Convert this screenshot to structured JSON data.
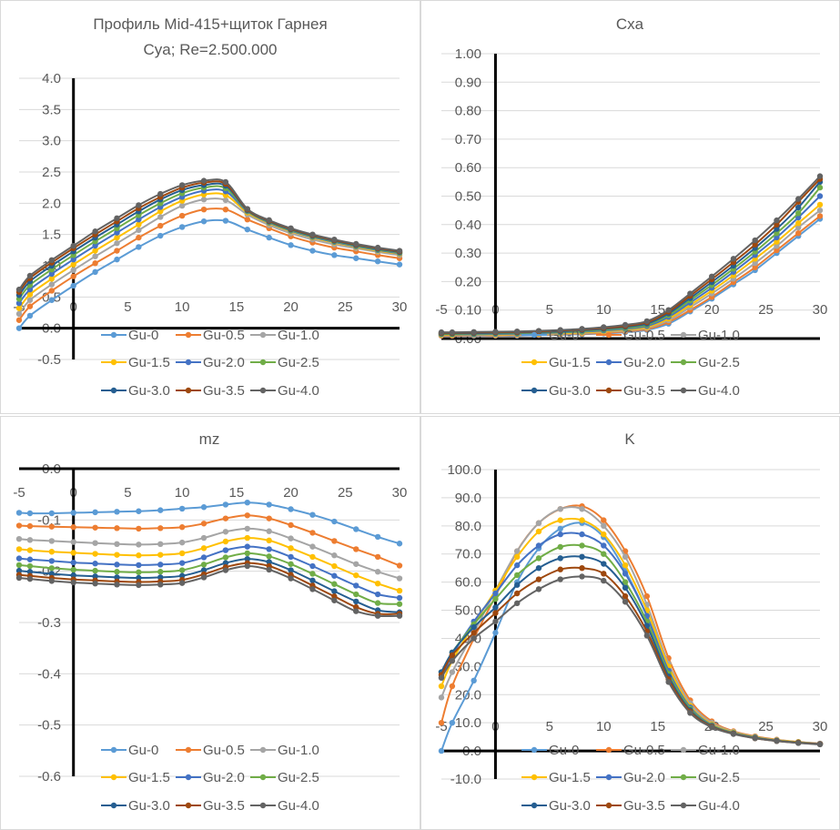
{
  "series_colors": [
    "#5b9bd5",
    "#ed7d31",
    "#a5a5a5",
    "#ffc000",
    "#4472c4",
    "#70ad47",
    "#255e91",
    "#9e480e",
    "#636363"
  ],
  "chart_data": [
    {
      "type": "line",
      "title": [
        "Профиль Mid-415+щиток Гарнея",
        "Cya; Re=2.500.000"
      ],
      "xlabel": "",
      "ylabel": "",
      "xlim": [
        -5,
        30
      ],
      "ylim": [
        -0.5,
        4.0
      ],
      "x_ticks": [
        "-5",
        "0",
        "5",
        "10",
        "15",
        "20",
        "25",
        "30"
      ],
      "y_ticks": [
        "-0.5",
        "0.0",
        "0.5",
        "1.0",
        "1.5",
        "2.0",
        "2.5",
        "3.0",
        "3.5",
        "4.0"
      ],
      "x": [
        -5,
        -4,
        -2,
        0,
        2,
        4,
        6,
        8,
        10,
        12,
        14,
        16,
        18,
        20,
        22,
        24,
        26,
        28,
        30
      ],
      "series": [
        {
          "name": "Gu-0",
          "values": [
            0.0,
            0.2,
            0.45,
            0.68,
            0.9,
            1.1,
            1.3,
            1.48,
            1.62,
            1.71,
            1.72,
            1.58,
            1.45,
            1.33,
            1.24,
            1.17,
            1.12,
            1.07,
            1.02
          ]
        },
        {
          "name": "Gu-0.5",
          "values": [
            0.13,
            0.35,
            0.6,
            0.83,
            1.04,
            1.24,
            1.45,
            1.64,
            1.8,
            1.9,
            1.9,
            1.74,
            1.6,
            1.47,
            1.37,
            1.29,
            1.23,
            1.17,
            1.12
          ]
        },
        {
          "name": "Gu-1.0",
          "values": [
            0.23,
            0.45,
            0.7,
            0.93,
            1.15,
            1.36,
            1.57,
            1.78,
            1.96,
            2.06,
            2.05,
            1.82,
            1.65,
            1.52,
            1.42,
            1.34,
            1.28,
            1.22,
            1.17
          ]
        },
        {
          "name": "Gu-1.5",
          "values": [
            0.32,
            0.54,
            0.79,
            1.02,
            1.24,
            1.45,
            1.66,
            1.87,
            2.04,
            2.14,
            2.13,
            1.85,
            1.68,
            1.55,
            1.45,
            1.37,
            1.3,
            1.24,
            1.19
          ]
        },
        {
          "name": "Gu-2.0",
          "values": [
            0.4,
            0.62,
            0.87,
            1.1,
            1.32,
            1.53,
            1.74,
            1.94,
            2.1,
            2.2,
            2.19,
            1.87,
            1.69,
            1.56,
            1.46,
            1.38,
            1.31,
            1.25,
            1.2
          ]
        },
        {
          "name": "Gu-2.5",
          "values": [
            0.47,
            0.69,
            0.94,
            1.17,
            1.39,
            1.6,
            1.81,
            2.0,
            2.16,
            2.25,
            2.24,
            1.88,
            1.7,
            1.57,
            1.47,
            1.39,
            1.32,
            1.26,
            1.21
          ]
        },
        {
          "name": "Gu-3.0",
          "values": [
            0.53,
            0.75,
            1.0,
            1.23,
            1.45,
            1.66,
            1.87,
            2.06,
            2.21,
            2.29,
            2.28,
            1.89,
            1.71,
            1.58,
            1.48,
            1.4,
            1.33,
            1.27,
            1.22
          ]
        },
        {
          "name": "Gu-3.5",
          "values": [
            0.58,
            0.8,
            1.05,
            1.28,
            1.5,
            1.71,
            1.92,
            2.1,
            2.25,
            2.33,
            2.31,
            1.9,
            1.72,
            1.59,
            1.49,
            1.41,
            1.34,
            1.28,
            1.23
          ]
        },
        {
          "name": "Gu-4.0",
          "values": [
            0.62,
            0.84,
            1.09,
            1.32,
            1.55,
            1.76,
            1.97,
            2.15,
            2.29,
            2.36,
            2.34,
            1.91,
            1.73,
            1.6,
            1.5,
            1.42,
            1.35,
            1.29,
            1.24
          ]
        }
      ]
    },
    {
      "type": "line",
      "title": [
        "Cxa"
      ],
      "xlabel": "",
      "ylabel": "",
      "xlim": [
        -5,
        30
      ],
      "ylim": [
        0.0,
        1.0
      ],
      "x_ticks": [
        "-5",
        "0",
        "5",
        "10",
        "15",
        "20",
        "25",
        "30"
      ],
      "y_ticks": [
        "0.00",
        "0.10",
        "0.20",
        "0.30",
        "0.40",
        "0.50",
        "0.60",
        "0.70",
        "0.80",
        "0.90",
        "1.00"
      ],
      "x": [
        -5,
        -4,
        -2,
        0,
        2,
        4,
        6,
        8,
        10,
        12,
        14,
        16,
        18,
        20,
        22,
        24,
        26,
        28,
        30
      ],
      "series": [
        {
          "name": "Gu-0",
          "values": [
            0.01,
            0.01,
            0.01,
            0.01,
            0.01,
            0.012,
            0.013,
            0.015,
            0.018,
            0.022,
            0.03,
            0.052,
            0.095,
            0.14,
            0.19,
            0.24,
            0.3,
            0.36,
            0.42
          ]
        },
        {
          "name": "Gu-0.5",
          "values": [
            0.01,
            0.01,
            0.011,
            0.011,
            0.012,
            0.013,
            0.015,
            0.017,
            0.02,
            0.025,
            0.033,
            0.058,
            0.1,
            0.146,
            0.198,
            0.25,
            0.31,
            0.37,
            0.43
          ]
        },
        {
          "name": "Gu-1.0",
          "values": [
            0.012,
            0.012,
            0.012,
            0.013,
            0.014,
            0.015,
            0.017,
            0.019,
            0.023,
            0.028,
            0.037,
            0.064,
            0.11,
            0.158,
            0.21,
            0.265,
            0.325,
            0.39,
            0.45
          ]
        },
        {
          "name": "Gu-1.5",
          "values": [
            0.013,
            0.013,
            0.014,
            0.014,
            0.015,
            0.017,
            0.019,
            0.021,
            0.025,
            0.031,
            0.04,
            0.07,
            0.118,
            0.168,
            0.222,
            0.28,
            0.34,
            0.405,
            0.47
          ]
        },
        {
          "name": "Gu-2.0",
          "values": [
            0.015,
            0.015,
            0.015,
            0.016,
            0.017,
            0.019,
            0.021,
            0.024,
            0.028,
            0.034,
            0.044,
            0.076,
            0.126,
            0.178,
            0.234,
            0.293,
            0.355,
            0.425,
            0.5
          ]
        },
        {
          "name": "Gu-2.5",
          "values": [
            0.016,
            0.016,
            0.017,
            0.018,
            0.019,
            0.021,
            0.023,
            0.026,
            0.031,
            0.037,
            0.048,
            0.082,
            0.134,
            0.188,
            0.245,
            0.305,
            0.37,
            0.44,
            0.53
          ]
        },
        {
          "name": "Gu-3.0",
          "values": [
            0.018,
            0.018,
            0.019,
            0.02,
            0.021,
            0.023,
            0.025,
            0.029,
            0.034,
            0.041,
            0.052,
            0.088,
            0.142,
            0.198,
            0.256,
            0.318,
            0.385,
            0.46,
            0.55
          ]
        },
        {
          "name": "Gu-3.5",
          "values": [
            0.02,
            0.02,
            0.021,
            0.022,
            0.023,
            0.025,
            0.028,
            0.032,
            0.037,
            0.044,
            0.057,
            0.094,
            0.15,
            0.208,
            0.268,
            0.33,
            0.4,
            0.48,
            0.56
          ]
        },
        {
          "name": "Gu-4.0",
          "values": [
            0.022,
            0.022,
            0.023,
            0.024,
            0.025,
            0.027,
            0.03,
            0.034,
            0.04,
            0.048,
            0.061,
            0.1,
            0.158,
            0.218,
            0.28,
            0.345,
            0.415,
            0.49,
            0.57
          ]
        }
      ]
    },
    {
      "type": "line",
      "title": [
        "mz"
      ],
      "xlabel": "",
      "ylabel": "",
      "xlim": [
        -5,
        30
      ],
      "ylim": [
        -0.6,
        0.0
      ],
      "x_ticks": [
        "-5",
        "0",
        "5",
        "10",
        "15",
        "20",
        "25",
        "30"
      ],
      "y_ticks": [
        "0.0",
        "-0.1",
        "-0.2",
        "-0.3",
        "-0.4",
        "-0.5",
        "-0.6"
      ],
      "y_tick_values": [
        0.0,
        -0.1,
        -0.2,
        -0.3,
        -0.4,
        -0.5,
        -0.6
      ],
      "x": [
        -5,
        -4,
        -2,
        0,
        2,
        4,
        6,
        8,
        10,
        12,
        14,
        16,
        18,
        20,
        22,
        24,
        26,
        28,
        30
      ],
      "series": [
        {
          "name": "Gu-0",
          "values": [
            -0.086,
            -0.087,
            -0.087,
            -0.086,
            -0.085,
            -0.084,
            -0.083,
            -0.081,
            -0.078,
            -0.075,
            -0.07,
            -0.066,
            -0.07,
            -0.079,
            -0.09,
            -0.103,
            -0.118,
            -0.133,
            -0.146
          ]
        },
        {
          "name": "Gu-0.5",
          "values": [
            -0.111,
            -0.112,
            -0.113,
            -0.114,
            -0.115,
            -0.116,
            -0.117,
            -0.116,
            -0.114,
            -0.107,
            -0.097,
            -0.091,
            -0.097,
            -0.11,
            -0.125,
            -0.141,
            -0.157,
            -0.172,
            -0.189
          ]
        },
        {
          "name": "Gu-1.0",
          "values": [
            -0.137,
            -0.139,
            -0.141,
            -0.143,
            -0.145,
            -0.147,
            -0.148,
            -0.147,
            -0.144,
            -0.135,
            -0.123,
            -0.117,
            -0.122,
            -0.136,
            -0.152,
            -0.169,
            -0.186,
            -0.201,
            -0.214
          ]
        },
        {
          "name": "Gu-1.5",
          "values": [
            -0.157,
            -0.159,
            -0.162,
            -0.164,
            -0.166,
            -0.168,
            -0.169,
            -0.168,
            -0.165,
            -0.155,
            -0.142,
            -0.135,
            -0.14,
            -0.155,
            -0.172,
            -0.19,
            -0.208,
            -0.224,
            -0.238
          ]
        },
        {
          "name": "Gu-2.0",
          "values": [
            -0.175,
            -0.177,
            -0.18,
            -0.183,
            -0.185,
            -0.187,
            -0.188,
            -0.187,
            -0.184,
            -0.173,
            -0.159,
            -0.152,
            -0.157,
            -0.172,
            -0.19,
            -0.209,
            -0.228,
            -0.245,
            -0.252
          ]
        },
        {
          "name": "Gu-2.5",
          "values": [
            -0.188,
            -0.19,
            -0.194,
            -0.197,
            -0.199,
            -0.201,
            -0.202,
            -0.201,
            -0.198,
            -0.187,
            -0.173,
            -0.165,
            -0.171,
            -0.186,
            -0.205,
            -0.225,
            -0.245,
            -0.262,
            -0.264
          ]
        },
        {
          "name": "Gu-3.0",
          "values": [
            -0.199,
            -0.201,
            -0.205,
            -0.208,
            -0.21,
            -0.212,
            -0.213,
            -0.212,
            -0.209,
            -0.198,
            -0.184,
            -0.176,
            -0.182,
            -0.198,
            -0.218,
            -0.239,
            -0.259,
            -0.276,
            -0.28
          ]
        },
        {
          "name": "Gu-3.5",
          "values": [
            -0.207,
            -0.209,
            -0.213,
            -0.216,
            -0.218,
            -0.22,
            -0.221,
            -0.22,
            -0.217,
            -0.206,
            -0.192,
            -0.184,
            -0.19,
            -0.207,
            -0.228,
            -0.249,
            -0.27,
            -0.283,
            -0.283
          ]
        },
        {
          "name": "Gu-4.0",
          "values": [
            -0.213,
            -0.215,
            -0.219,
            -0.222,
            -0.224,
            -0.226,
            -0.227,
            -0.226,
            -0.223,
            -0.212,
            -0.198,
            -0.19,
            -0.197,
            -0.214,
            -0.235,
            -0.257,
            -0.278,
            -0.287,
            -0.287
          ]
        }
      ]
    },
    {
      "type": "line",
      "title": [
        "K"
      ],
      "xlabel": "",
      "ylabel": "",
      "xlim": [
        -5,
        30
      ],
      "ylim": [
        -10.0,
        100.0
      ],
      "x_ticks": [
        "-5",
        "0",
        "5",
        "10",
        "15",
        "20",
        "25",
        "30"
      ],
      "y_ticks": [
        "-10.0",
        "0.0",
        "10.0",
        "20.0",
        "30.0",
        "40.0",
        "50.0",
        "60.0",
        "70.0",
        "80.0",
        "90.0",
        "100.0"
      ],
      "x": [
        -5,
        -4,
        -2,
        0,
        2,
        4,
        6,
        8,
        10,
        12,
        14,
        16,
        18,
        20,
        22,
        24,
        26,
        28,
        30
      ],
      "series": [
        {
          "name": "Gu-0",
          "values": [
            0.0,
            10.0,
            25.0,
            42.0,
            60.0,
            72.0,
            79.0,
            81.0,
            76.0,
            64.0,
            48.0,
            28.0,
            15.0,
            9.5,
            6.5,
            4.8,
            3.7,
            3.0,
            2.4
          ]
        },
        {
          "name": "Gu-0.5",
          "values": [
            10.0,
            23.0,
            40.0,
            55.0,
            71.0,
            81.0,
            86.0,
            87.0,
            82.0,
            71.0,
            55.0,
            33.0,
            18.0,
            10.5,
            7.0,
            5.2,
            4.0,
            3.2,
            2.6
          ]
        },
        {
          "name": "Gu-1.0",
          "values": [
            19.0,
            28.0,
            42.0,
            57.0,
            71.0,
            81.0,
            86.0,
            86.0,
            80.0,
            69.0,
            52.0,
            31.0,
            17.0,
            10.0,
            6.8,
            5.0,
            3.9,
            3.1,
            2.6
          ]
        },
        {
          "name": "Gu-1.5",
          "values": [
            23.0,
            32.0,
            45.0,
            57.0,
            69.0,
            78.0,
            82.0,
            82.0,
            77.0,
            66.0,
            50.0,
            30.0,
            16.0,
            9.5,
            6.6,
            4.9,
            3.8,
            3.1,
            2.5
          ]
        },
        {
          "name": "Gu-2.0",
          "values": [
            26.0,
            34.0,
            46.0,
            56.0,
            66.0,
            73.0,
            77.0,
            77.0,
            73.0,
            63.0,
            48.0,
            28.5,
            15.5,
            9.2,
            6.4,
            4.8,
            3.7,
            3.0,
            2.5
          ]
        },
        {
          "name": "Gu-2.5",
          "values": [
            28.0,
            35.0,
            45.0,
            54.0,
            62.5,
            68.5,
            72.5,
            73.0,
            70.0,
            60.0,
            46.0,
            27.5,
            15.0,
            9.0,
            6.3,
            4.7,
            3.6,
            3.0,
            2.4
          ]
        },
        {
          "name": "Gu-3.0",
          "values": [
            28.0,
            35.0,
            44.0,
            51.0,
            59.0,
            65.0,
            68.5,
            69.0,
            66.5,
            58.0,
            44.5,
            26.5,
            14.5,
            8.8,
            6.2,
            4.6,
            3.6,
            2.9,
            2.4
          ]
        },
        {
          "name": "Gu-3.5",
          "values": [
            27.0,
            34.0,
            42.0,
            49.0,
            56.0,
            61.0,
            64.5,
            65.0,
            63.0,
            55.0,
            42.5,
            25.5,
            14.0,
            8.6,
            6.1,
            4.5,
            3.5,
            2.9,
            2.4
          ]
        },
        {
          "name": "Gu-4.0",
          "values": [
            26.0,
            32.0,
            40.0,
            46.0,
            52.5,
            57.5,
            61.0,
            62.0,
            60.5,
            53.0,
            41.0,
            24.5,
            13.5,
            8.4,
            6.0,
            4.5,
            3.5,
            2.8,
            2.3
          ]
        }
      ]
    }
  ]
}
